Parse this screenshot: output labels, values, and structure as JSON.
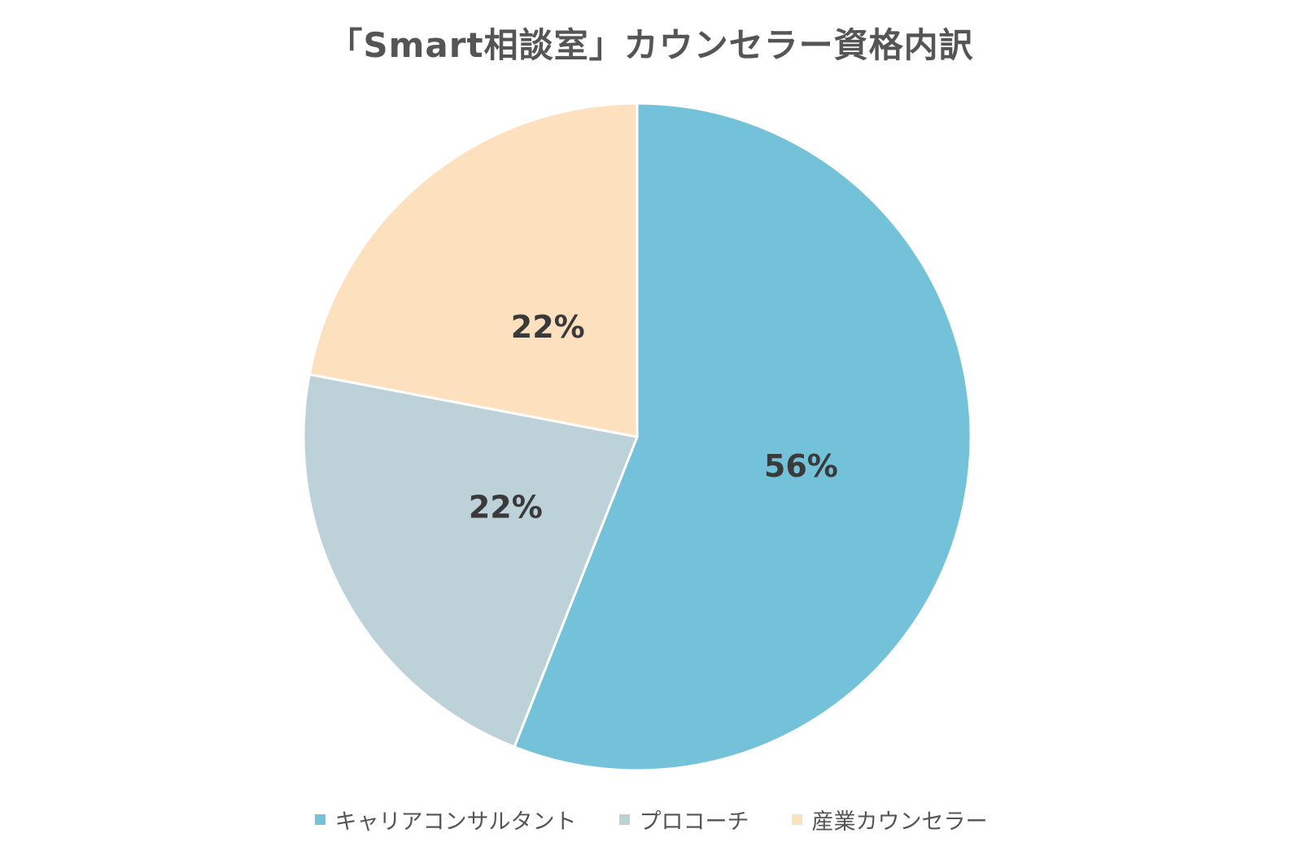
{
  "chart_data": {
    "type": "pie",
    "title": "「Smart相談室」カウンセラー資格内訳",
    "categories": [
      "キャリアコンサルタント",
      "プロコーチ",
      "産業カウンセラー"
    ],
    "values": [
      56,
      22,
      22
    ],
    "labels": [
      "56%",
      "22%",
      "22%"
    ],
    "colors": [
      "#74C1DA",
      "#BDD1D8",
      "#FDE0BD"
    ],
    "start_angle_deg": 0,
    "direction": "clockwise",
    "legend_position": "bottom"
  }
}
